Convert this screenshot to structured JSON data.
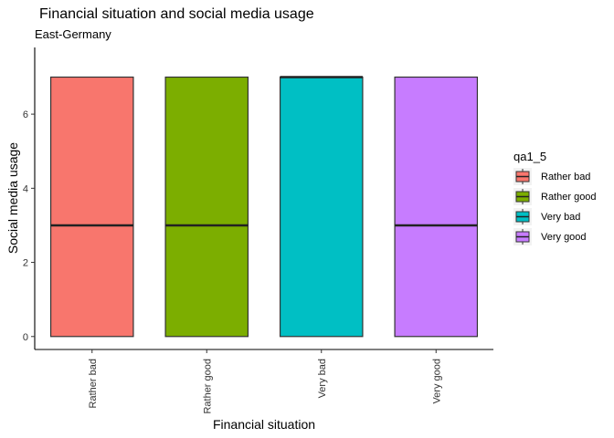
{
  "chart_data": {
    "type": "boxplot",
    "title": "Financial situation and social media usage",
    "subtitle": "East-Germany",
    "xlabel": "Financial situation",
    "ylabel": "Social media usage",
    "ylim": [
      -0.35,
      7.8
    ],
    "yticks": [
      0,
      2,
      4,
      6
    ],
    "grid": false,
    "legend": {
      "title": "qa1_5",
      "placement": "right"
    },
    "categories": [
      "Rather bad",
      "Rather good",
      "Very bad",
      "Very good"
    ],
    "boxes": [
      {
        "category": "Rather bad",
        "min": 0,
        "q1": 0,
        "median": 3,
        "q3": 7,
        "max": 7
      },
      {
        "category": "Rather good",
        "min": 0,
        "q1": 0,
        "median": 3,
        "q3": 7,
        "max": 7
      },
      {
        "category": "Very bad",
        "min": 0,
        "q1": 0,
        "median": 7,
        "q3": 7,
        "max": 7
      },
      {
        "category": "Very good",
        "min": 0,
        "q1": 0,
        "median": 3,
        "q3": 7,
        "max": 7
      }
    ],
    "colors": [
      "#F8766D",
      "#7CAE00",
      "#00BFC4",
      "#C77CFF"
    ]
  }
}
